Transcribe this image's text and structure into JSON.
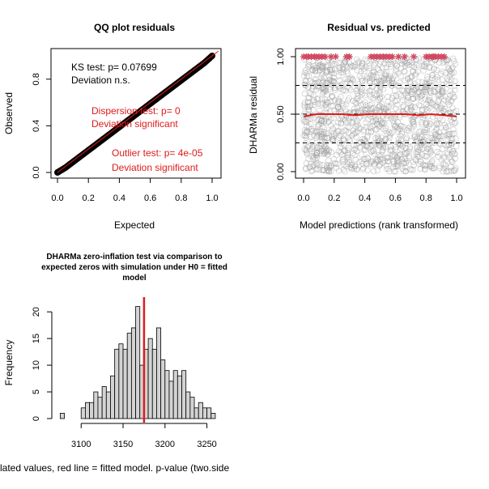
{
  "chart_data": [
    {
      "type": "scatter",
      "title": "QQ plot residuals",
      "xlabel": "Expected",
      "ylabel": "Observed",
      "xlim": [
        0,
        1
      ],
      "ylim": [
        0,
        1
      ],
      "xticks": [
        "0.0",
        "0.2",
        "0.4",
        "0.6",
        "0.8",
        "1.0"
      ],
      "yticks": [
        "0.0",
        "0.4",
        "0.8"
      ],
      "series": [
        {
          "x": [
            0.0,
            0.05,
            0.1,
            0.15,
            0.2,
            0.25,
            0.3,
            0.35,
            0.4,
            0.45,
            0.5,
            0.55,
            0.6,
            0.65,
            0.7,
            0.75,
            0.8,
            0.85,
            0.9,
            0.95,
            1.0
          ],
          "y": [
            0.0,
            0.04,
            0.09,
            0.14,
            0.19,
            0.24,
            0.29,
            0.34,
            0.39,
            0.44,
            0.49,
            0.54,
            0.59,
            0.64,
            0.69,
            0.74,
            0.79,
            0.84,
            0.89,
            0.94,
            1.0
          ]
        }
      ],
      "annotations": {
        "ks_test": "KS test: p= 0.07699",
        "ks_deviation": "Deviation  n.s.",
        "dispersion_test": "Dispersion test: p= 0",
        "dispersion_deviation": "Deviation  significant",
        "outlier_test": "Outlier test: p= 4e-05",
        "outlier_deviation": "Deviation  significant"
      },
      "colors": {
        "points": "#000000",
        "reference_line": "#DF1B1B",
        "annotation_sig": "#DF1B1B"
      }
    },
    {
      "type": "scatter",
      "title": "Residual vs. predicted",
      "xlabel": "Model predictions (rank transformed)",
      "ylabel": "DHARMa residual",
      "xlim": [
        0,
        1
      ],
      "ylim": [
        0,
        1
      ],
      "xticks": [
        "0.0",
        "0.2",
        "0.4",
        "0.6",
        "0.8",
        "1.0"
      ],
      "yticks": [
        "0.00",
        "0.50",
        "1.00"
      ],
      "quantile_lines": [
        0.25,
        0.5,
        0.75
      ],
      "fitted_median_line": [
        0.48,
        0.5,
        0.5,
        0.5,
        0.49,
        0.5,
        0.5,
        0.5,
        0.5,
        0.49,
        0.5,
        0.49,
        0.48
      ],
      "outliers_at_1": [
        0.0,
        0.02,
        0.03,
        0.05,
        0.07,
        0.08,
        0.1,
        0.12,
        0.14,
        0.18,
        0.21,
        0.28,
        0.3,
        0.44,
        0.46,
        0.48,
        0.5,
        0.52,
        0.54,
        0.56,
        0.58,
        0.62,
        0.66,
        0.72,
        0.8,
        0.82,
        0.84,
        0.85,
        0.86,
        0.88,
        0.9,
        0.92
      ],
      "colors": {
        "points": "#9a9a9a",
        "outliers": "#D2455E",
        "median_line": "#DF1B1B",
        "quantile_lines": "#000000"
      }
    },
    {
      "type": "bar",
      "title": "DHARMa zero-inflation test via comparison to expected zeros with simulation under H0 = fitted model",
      "title_lines": [
        "DHARMa zero-inflation test via comparison to",
        "expected zeros with simulation under H0 = fitted",
        "model"
      ],
      "xlabel": "lated values, red line = fitted model. p-value (two.side",
      "ylabel": "Frequency",
      "xlim": [
        3065,
        3262
      ],
      "ylim": [
        0,
        22
      ],
      "xticks": [
        "3100",
        "3150",
        "3200",
        "3250"
      ],
      "yticks": [
        "0",
        "5",
        "10",
        "15",
        "20"
      ],
      "bin_width": 5,
      "bins": [
        {
          "start": 3075,
          "count": 1
        },
        {
          "start": 3080,
          "count": 0
        },
        {
          "start": 3085,
          "count": 0
        },
        {
          "start": 3090,
          "count": 0
        },
        {
          "start": 3095,
          "count": 0
        },
        {
          "start": 3100,
          "count": 2
        },
        {
          "start": 3105,
          "count": 3
        },
        {
          "start": 3110,
          "count": 3
        },
        {
          "start": 3115,
          "count": 5
        },
        {
          "start": 3120,
          "count": 4
        },
        {
          "start": 3125,
          "count": 6
        },
        {
          "start": 3130,
          "count": 5
        },
        {
          "start": 3135,
          "count": 8
        },
        {
          "start": 3140,
          "count": 13
        },
        {
          "start": 3145,
          "count": 14
        },
        {
          "start": 3150,
          "count": 13
        },
        {
          "start": 3155,
          "count": 16
        },
        {
          "start": 3160,
          "count": 17
        },
        {
          "start": 3165,
          "count": 21
        },
        {
          "start": 3170,
          "count": 10
        },
        {
          "start": 3175,
          "count": 13
        },
        {
          "start": 3180,
          "count": 15
        },
        {
          "start": 3185,
          "count": 13
        },
        {
          "start": 3190,
          "count": 17
        },
        {
          "start": 3195,
          "count": 11
        },
        {
          "start": 3200,
          "count": 9
        },
        {
          "start": 3205,
          "count": 7
        },
        {
          "start": 3210,
          "count": 9
        },
        {
          "start": 3215,
          "count": 8
        },
        {
          "start": 3220,
          "count": 9
        },
        {
          "start": 3225,
          "count": 5
        },
        {
          "start": 3230,
          "count": 4
        },
        {
          "start": 3235,
          "count": 2
        },
        {
          "start": 3240,
          "count": 3
        },
        {
          "start": 3245,
          "count": 2
        },
        {
          "start": 3250,
          "count": 2
        },
        {
          "start": 3255,
          "count": 1
        }
      ],
      "fitted_value": 3175,
      "colors": {
        "bars": "#D3D3D3",
        "bar_border": "#000000",
        "fitted_line": "#DF1B1B"
      }
    }
  ]
}
